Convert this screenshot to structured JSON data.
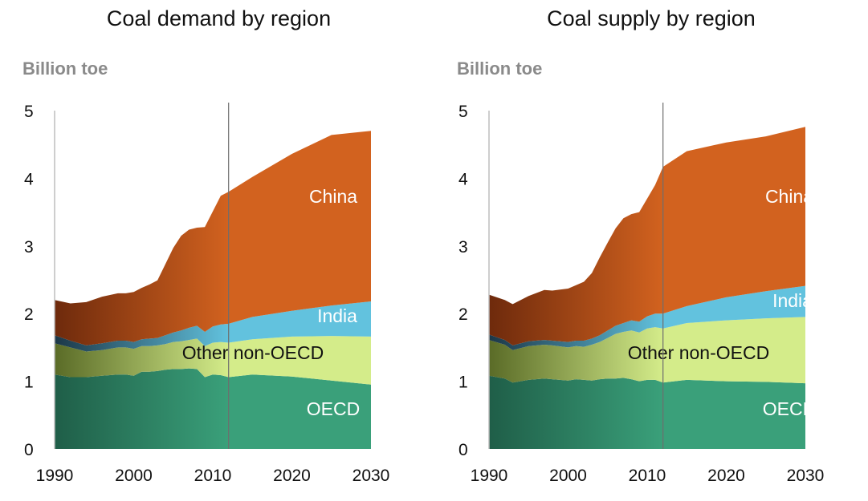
{
  "chart_data": [
    {
      "type": "area",
      "title": "Coal demand by region",
      "ylabel": "Billion toe",
      "xlabel": "",
      "ylim": [
        0,
        5
      ],
      "xlim": [
        1990,
        2030
      ],
      "x_ticks": [
        1990,
        2000,
        2010,
        2020,
        2030
      ],
      "y_ticks": [
        0,
        1,
        2,
        3,
        4,
        5
      ],
      "stacked": true,
      "projection_divider_year": 2012,
      "x": [
        1990,
        1992,
        1994,
        1996,
        1998,
        1999,
        2000,
        2001,
        2002,
        2003,
        2004,
        2005,
        2006,
        2007,
        2008,
        2009,
        2010,
        2011,
        2012,
        2015,
        2020,
        2025,
        2030
      ],
      "series": [
        {
          "name": "OECD",
          "color": "#3aa07a",
          "values": [
            1.1,
            1.06,
            1.06,
            1.08,
            1.1,
            1.1,
            1.08,
            1.14,
            1.14,
            1.15,
            1.17,
            1.18,
            1.18,
            1.19,
            1.18,
            1.06,
            1.1,
            1.09,
            1.06,
            1.1,
            1.07,
            1.01,
            0.95
          ]
        },
        {
          "name": "Other non-OECD",
          "color": "#d4ec8a",
          "values": [
            0.46,
            0.44,
            0.38,
            0.38,
            0.4,
            0.4,
            0.4,
            0.38,
            0.38,
            0.38,
            0.38,
            0.4,
            0.41,
            0.42,
            0.45,
            0.46,
            0.47,
            0.49,
            0.51,
            0.52,
            0.59,
            0.66,
            0.71
          ]
        },
        {
          "name": "India",
          "color": "#62c2de",
          "values": [
            0.12,
            0.1,
            0.09,
            0.1,
            0.1,
            0.1,
            0.1,
            0.1,
            0.11,
            0.11,
            0.13,
            0.14,
            0.16,
            0.18,
            0.19,
            0.21,
            0.24,
            0.26,
            0.28,
            0.33,
            0.38,
            0.45,
            0.52
          ]
        },
        {
          "name": "China",
          "color": "#d2621f",
          "values": [
            0.52,
            0.55,
            0.64,
            0.69,
            0.7,
            0.7,
            0.74,
            0.76,
            0.8,
            0.85,
            1.05,
            1.25,
            1.4,
            1.45,
            1.45,
            1.55,
            1.7,
            1.9,
            1.95,
            2.07,
            2.32,
            2.52,
            2.52
          ]
        }
      ]
    },
    {
      "type": "area",
      "title": "Coal supply by region",
      "ylabel": "Billion toe",
      "xlabel": "",
      "ylim": [
        0,
        5
      ],
      "xlim": [
        1990,
        2030
      ],
      "x_ticks": [
        1990,
        2000,
        2010,
        2020,
        2030
      ],
      "y_ticks": [
        0,
        1,
        2,
        3,
        4,
        5
      ],
      "stacked": true,
      "projection_divider_year": 2012,
      "x": [
        1990,
        1992,
        1993,
        1995,
        1997,
        1998,
        2000,
        2001,
        2002,
        2003,
        2004,
        2005,
        2006,
        2007,
        2008,
        2009,
        2010,
        2011,
        2012,
        2015,
        2020,
        2025,
        2030
      ],
      "series": [
        {
          "name": "OECD",
          "color": "#3aa07a",
          "values": [
            1.08,
            1.04,
            0.98,
            1.02,
            1.04,
            1.03,
            1.01,
            1.03,
            1.02,
            1.01,
            1.03,
            1.04,
            1.04,
            1.05,
            1.03,
            1.0,
            1.02,
            1.02,
            0.98,
            1.02,
            1.0,
            0.99,
            0.97
          ]
        },
        {
          "name": "Other non-OECD",
          "color": "#d4ec8a",
          "values": [
            0.53,
            0.5,
            0.48,
            0.5,
            0.5,
            0.5,
            0.49,
            0.49,
            0.49,
            0.53,
            0.55,
            0.6,
            0.66,
            0.68,
            0.72,
            0.72,
            0.76,
            0.78,
            0.8,
            0.84,
            0.9,
            0.94,
            0.98
          ]
        },
        {
          "name": "India",
          "color": "#62c2de",
          "values": [
            0.08,
            0.07,
            0.07,
            0.07,
            0.07,
            0.07,
            0.08,
            0.08,
            0.09,
            0.09,
            0.1,
            0.11,
            0.12,
            0.13,
            0.15,
            0.16,
            0.18,
            0.2,
            0.22,
            0.25,
            0.34,
            0.4,
            0.46
          ]
        },
        {
          "name": "China",
          "color": "#d2621f",
          "values": [
            0.59,
            0.59,
            0.61,
            0.67,
            0.74,
            0.74,
            0.79,
            0.82,
            0.87,
            0.97,
            1.15,
            1.3,
            1.44,
            1.55,
            1.57,
            1.62,
            1.74,
            1.9,
            2.17,
            2.29,
            2.29,
            2.29,
            2.35
          ]
        }
      ]
    }
  ]
}
